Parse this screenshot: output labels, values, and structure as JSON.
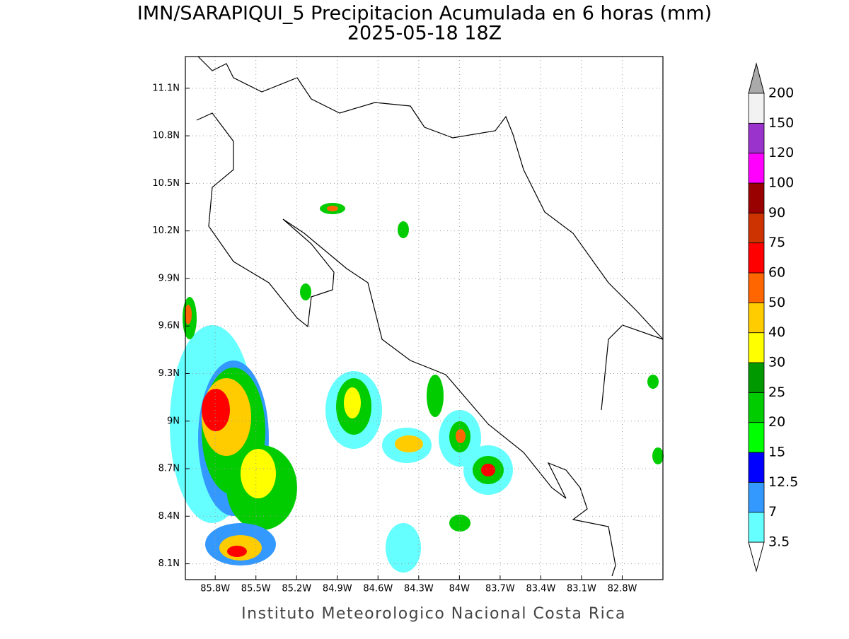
{
  "title": "IMN/SARAPIQUI_5 Precipitacion Acumulada en 6 horas (mm)",
  "subtitle": "2025-05-18 18Z",
  "footer": "Instituto Meteorologico Nacional Costa Rica",
  "map": {
    "xlim": [
      -86.02,
      -82.5
    ],
    "ylim": [
      8.0,
      11.3
    ],
    "xticks": [
      {
        "value": -85.8,
        "label": "85.8W"
      },
      {
        "value": -85.5,
        "label": "85.5W"
      },
      {
        "value": -85.2,
        "label": "85.2W"
      },
      {
        "value": -84.9,
        "label": "84.9W"
      },
      {
        "value": -84.6,
        "label": "84.6W"
      },
      {
        "value": -84.3,
        "label": "84.3W"
      },
      {
        "value": -84.0,
        "label": "84W"
      },
      {
        "value": -83.7,
        "label": "83.7W"
      },
      {
        "value": -83.4,
        "label": "83.4W"
      },
      {
        "value": -83.1,
        "label": "83.1W"
      },
      {
        "value": -82.8,
        "label": "82.8W"
      }
    ],
    "yticks": [
      {
        "value": 8.1,
        "label": "8.1N"
      },
      {
        "value": 8.4,
        "label": "8.4N"
      },
      {
        "value": 8.7,
        "label": "8.7N"
      },
      {
        "value": 9.0,
        "label": "9N"
      },
      {
        "value": 9.3,
        "label": "9.3N"
      },
      {
        "value": 9.6,
        "label": "9.6N"
      },
      {
        "value": 9.9,
        "label": "9.9N"
      },
      {
        "value": 10.2,
        "label": "10.2N"
      },
      {
        "value": 10.5,
        "label": "10.5N"
      },
      {
        "value": 10.8,
        "label": "10.8N"
      },
      {
        "value": 11.1,
        "label": "11.1N"
      }
    ],
    "grid": true
  },
  "colorbar": {
    "levels": [
      3.5,
      7,
      12.5,
      15,
      20,
      25,
      30,
      40,
      50,
      60,
      75,
      90,
      100,
      120,
      150,
      200
    ],
    "colors": [
      "#66ffff",
      "#3399ff",
      "#0000ff",
      "#00ff00",
      "#00cc00",
      "#009900",
      "#ffff00",
      "#ffcc00",
      "#ff6600",
      "#ff0000",
      "#cc3300",
      "#990000",
      "#ff00ff",
      "#9933cc",
      "#f2f2f2"
    ],
    "under_color": "#ffffff",
    "over_color": "#aaaaaa"
  }
}
